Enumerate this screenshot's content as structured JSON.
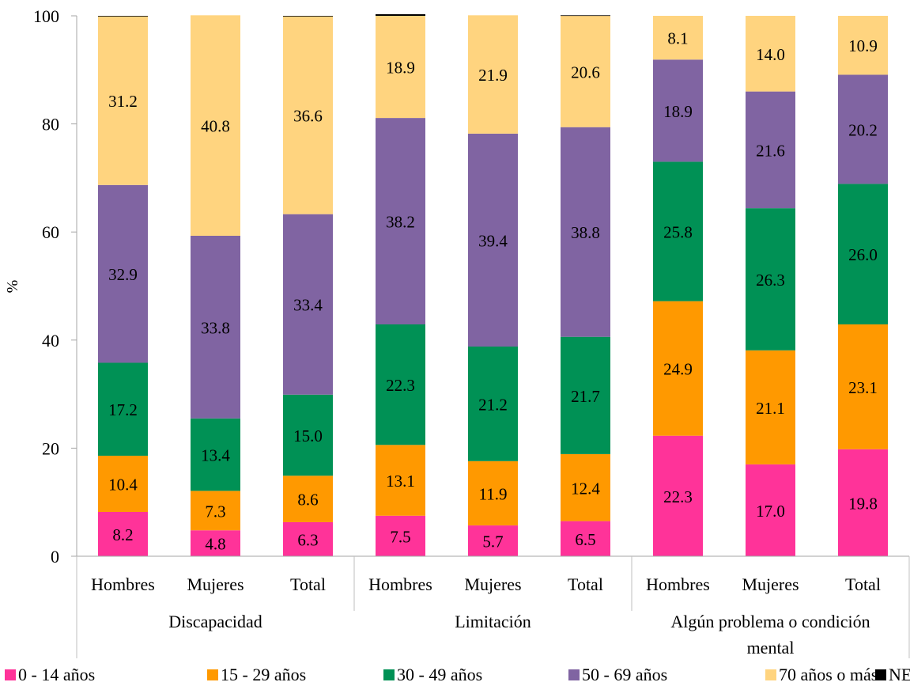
{
  "chart_data": {
    "type": "bar",
    "stacked": true,
    "title": "",
    "xlabel": "",
    "ylabel": "%",
    "ylim": [
      0,
      100
    ],
    "yticks": [
      "0",
      "20",
      "40",
      "60",
      "80",
      "100"
    ],
    "grid": false,
    "legend_position": "bottom",
    "groups": [
      {
        "label": "Discapacidad",
        "categories": [
          "Hombres",
          "Mujeres",
          "Total"
        ]
      },
      {
        "label": "Limitación",
        "categories": [
          "Hombres",
          "Mujeres",
          "Total"
        ]
      },
      {
        "label": "Algún problema o condición mental",
        "label_lines": [
          "Algún problema o condición",
          "mental"
        ],
        "categories": [
          "Hombres",
          "Mujeres",
          "Total"
        ]
      }
    ],
    "series": [
      {
        "name": "0 - 14 años",
        "color": "#FF3399",
        "values": [
          8.2,
          4.8,
          6.3,
          7.5,
          5.7,
          6.5,
          22.3,
          17.0,
          19.8
        ],
        "labels": [
          "8.2",
          "4.8",
          "6.3",
          "7.5",
          "5.7",
          "6.5",
          "22.3",
          "17.0",
          "19.8"
        ]
      },
      {
        "name": "15 - 29 años",
        "color": "#FF9900",
        "values": [
          10.4,
          7.3,
          8.6,
          13.1,
          11.9,
          12.4,
          24.9,
          21.1,
          23.1
        ],
        "labels": [
          "10.4",
          "7.3",
          "8.6",
          "13.1",
          "11.9",
          "12.4",
          "24.9",
          "21.1",
          "23.1"
        ]
      },
      {
        "name": "30 - 49 años",
        "color": "#009155",
        "values": [
          17.2,
          13.4,
          15.0,
          22.3,
          21.2,
          21.7,
          25.8,
          26.3,
          26.0
        ],
        "labels": [
          "17.2",
          "13.4",
          "15.0",
          "22.3",
          "21.2",
          "21.7",
          "25.8",
          "26.3",
          "26.0"
        ]
      },
      {
        "name": "50 - 69 años",
        "color": "#8064A2",
        "values": [
          32.9,
          33.8,
          33.4,
          38.2,
          39.4,
          38.8,
          18.9,
          21.6,
          20.2
        ],
        "labels": [
          "32.9",
          "33.8",
          "33.4",
          "38.2",
          "39.4",
          "38.8",
          "18.9",
          "21.6",
          "20.2"
        ]
      },
      {
        "name": "70 años o más",
        "color": "#FFD47F",
        "values": [
          31.2,
          40.8,
          36.6,
          18.9,
          21.9,
          20.6,
          8.1,
          14.0,
          10.9
        ],
        "labels": [
          "31.2",
          "40.8",
          "36.6",
          "18.9",
          "21.9",
          "20.6",
          "8.1",
          "14.0",
          "10.9"
        ]
      },
      {
        "name": "NE",
        "color": "#000000",
        "values": [
          0.1,
          0.0,
          0.1,
          0.3,
          0.0,
          0.1,
          0.0,
          0.0,
          0.0
        ],
        "labels": []
      }
    ]
  }
}
